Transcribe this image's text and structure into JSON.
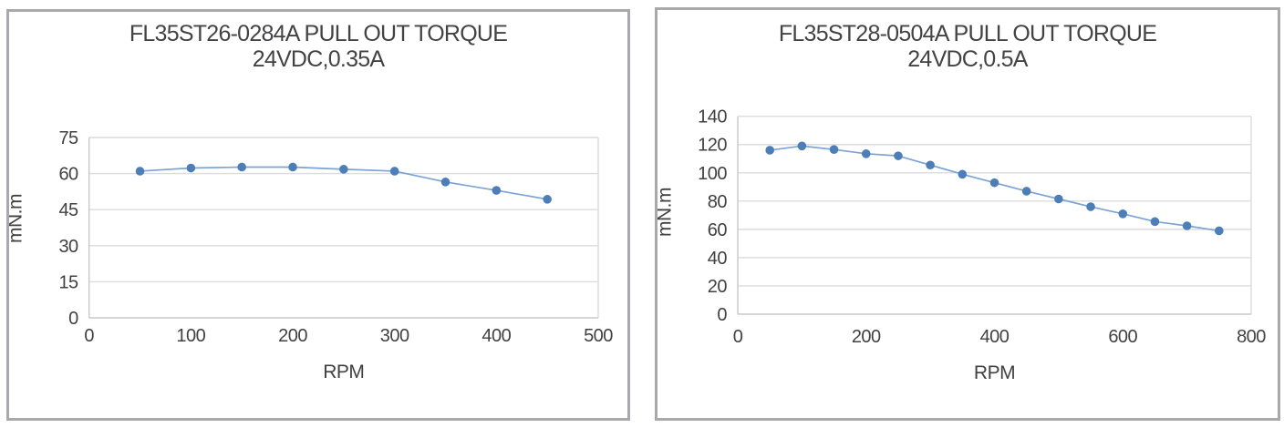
{
  "styles": {
    "background": "#ffffff",
    "panel_border_color": "#a8a8ad",
    "grid_color": "#dcdcdc",
    "axis_color": "#c9c9c9",
    "text_color": "#414141",
    "title_color": "#434346"
  },
  "chart_data": [
    {
      "type": "line",
      "title": "FL35ST26-0284A PULL OUT TORQUE 24VDC,0.35A",
      "title_line1": "FL35ST26-0284A PULL OUT TORQUE",
      "title_line2": "24VDC,0.35A",
      "xlabel": "RPM",
      "ylabel": "mN.m",
      "x": [
        50,
        100,
        150,
        200,
        250,
        300,
        350,
        400,
        450
      ],
      "y": [
        61,
        62.3,
        62.7,
        62.7,
        61.8,
        61,
        56.5,
        53,
        49.3
      ],
      "xlim": [
        0,
        500
      ],
      "ylim": [
        0,
        75
      ],
      "xticks": [
        0,
        100,
        200,
        300,
        400,
        500
      ],
      "yticks": [
        0,
        15,
        30,
        45,
        60,
        75
      ],
      "grid": true,
      "legend": "none",
      "line_color": "#7ba3d5",
      "marker_color": "#4d7eb8"
    },
    {
      "type": "line",
      "title": "FL35ST28-0504A PULL OUT TORQUE 24VDC,0.5A",
      "title_line1": "FL35ST28-0504A PULL OUT TORQUE",
      "title_line2": "24VDC,0.5A",
      "xlabel": "RPM",
      "ylabel": "mN.m",
      "x": [
        50,
        100,
        150,
        200,
        250,
        300,
        350,
        400,
        450,
        500,
        550,
        600,
        650,
        700,
        750
      ],
      "y": [
        116,
        119,
        116.5,
        113.5,
        112,
        105.5,
        99,
        93,
        87,
        81.5,
        76,
        71,
        65.5,
        62.5,
        59
      ],
      "xlim": [
        0,
        800
      ],
      "ylim": [
        0,
        140
      ],
      "xticks": [
        0,
        200,
        400,
        600,
        800
      ],
      "yticks": [
        0,
        20,
        40,
        60,
        80,
        100,
        120,
        140
      ],
      "grid": true,
      "legend": "none",
      "line_color": "#7ba3d5",
      "marker_color": "#4d7eb8"
    }
  ]
}
